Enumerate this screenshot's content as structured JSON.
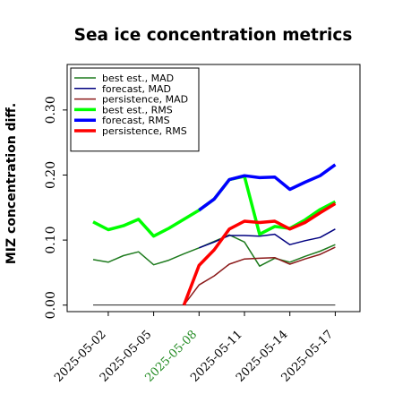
{
  "chart_data": {
    "type": "line",
    "title": "Sea ice concentration metrics",
    "ylabel": "MIZ concentration diff.",
    "xlabel": "",
    "ylim": [
      -0.01,
      0.37
    ],
    "yticks": [
      "0.00",
      "0.10",
      "0.20",
      "0.30"
    ],
    "ytick_values": [
      0.0,
      0.1,
      0.2,
      0.3
    ],
    "x": [
      "2025-05-01",
      "2025-05-02",
      "2025-05-03",
      "2025-05-04",
      "2025-05-05",
      "2025-05-06",
      "2025-05-07",
      "2025-05-08",
      "2025-05-09",
      "2025-05-10",
      "2025-05-11",
      "2025-05-12",
      "2025-05-13",
      "2025-05-14",
      "2025-05-15",
      "2025-05-16",
      "2025-05-17"
    ],
    "xticks": [
      "2025-05-02",
      "2025-05-05",
      "2025-05-08",
      "2025-05-11",
      "2025-05-14",
      "2025-05-17"
    ],
    "xtick_indices": [
      1,
      4,
      7,
      10,
      13,
      16
    ],
    "xtick_colors": [
      "#000000",
      "#000000",
      "#228b22",
      "#000000",
      "#000000",
      "#000000"
    ],
    "legend_position": "top-left",
    "series": [
      {
        "name": "best est., MAD",
        "color": "#1e7b1e",
        "width": 1.5,
        "values": [
          0.07,
          0.066,
          0.076,
          0.082,
          0.062,
          0.069,
          0.079,
          0.088,
          0.098,
          0.108,
          0.097,
          0.06,
          0.072,
          0.066,
          0.075,
          0.083,
          0.093
        ]
      },
      {
        "name": "forecast,  MAD",
        "color": "#000080",
        "width": 1.5,
        "values": [
          null,
          null,
          null,
          null,
          null,
          null,
          null,
          0.088,
          0.097,
          0.107,
          0.107,
          0.106,
          0.109,
          0.093,
          0.099,
          0.104,
          0.117
        ]
      },
      {
        "name": "persistence, MAD",
        "color": "#8b1a1a",
        "width": 1.5,
        "values": [
          null,
          null,
          null,
          null,
          null,
          null,
          0.0,
          0.031,
          0.045,
          0.063,
          0.071,
          0.072,
          0.073,
          0.063,
          0.071,
          0.078,
          0.089
        ]
      },
      {
        "name": "best est., RMS",
        "color": "#00ff00",
        "width": 3.5,
        "values": [
          0.128,
          0.116,
          0.122,
          0.132,
          0.106,
          0.118,
          0.132,
          0.146,
          0.163,
          0.193,
          0.198,
          0.109,
          0.121,
          0.118,
          0.131,
          0.147,
          0.159
        ]
      },
      {
        "name": "forecast,  RMS",
        "color": "#0000ff",
        "width": 3.5,
        "values": [
          null,
          null,
          null,
          null,
          null,
          null,
          null,
          0.146,
          0.163,
          0.193,
          0.199,
          0.196,
          0.197,
          0.178,
          0.189,
          0.199,
          0.216
        ]
      },
      {
        "name": "persistence, RMS",
        "color": "#ff0000",
        "width": 3.5,
        "values": [
          null,
          null,
          null,
          null,
          null,
          null,
          0.0,
          0.061,
          0.085,
          0.117,
          0.129,
          0.127,
          0.129,
          0.117,
          0.127,
          0.142,
          0.156
        ]
      },
      {
        "name": "",
        "color": "#000000",
        "width": 0.8,
        "values": [
          0.0,
          0.0,
          0.0,
          0.0,
          0.0,
          0.0,
          0.0,
          0.0,
          0.0,
          0.0,
          0.0,
          0.0,
          0.0,
          0.0,
          0.0,
          0.0,
          0.0
        ]
      }
    ]
  }
}
